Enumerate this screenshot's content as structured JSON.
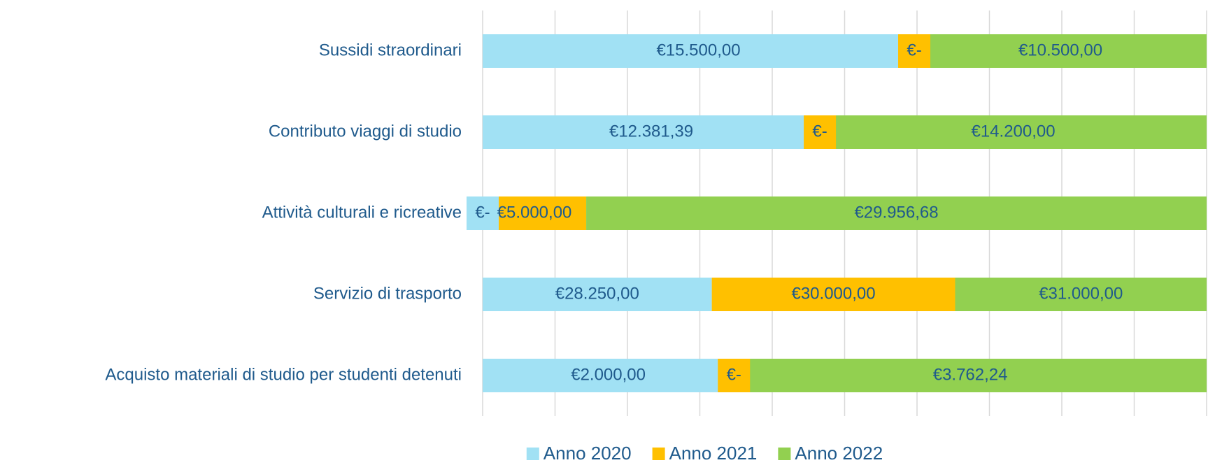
{
  "chart_data": {
    "type": "bar",
    "orientation": "horizontal",
    "stacked": "percent",
    "categories": [
      "Sussidi straordinari",
      "Contributo viaggi di studio",
      "Attività culturali e ricreative",
      "Servizio di trasporto",
      "Acquisto materiali di studio per studenti detenuti"
    ],
    "series": [
      {
        "name": "Anno 2020",
        "color": "#a1e1f4",
        "values": [
          15500,
          12381.39,
          0,
          28250,
          2000
        ],
        "value_labels": [
          "€15.500,00",
          "€12.381,39",
          "€-",
          "€28.250,00",
          "€2.000,00"
        ]
      },
      {
        "name": "Anno 2021",
        "color": "#ffc000",
        "values": [
          0,
          0,
          5000,
          30000,
          0
        ],
        "value_labels": [
          "€-",
          "€-",
          "€5.000,00",
          "€30.000,00",
          "€-"
        ]
      },
      {
        "name": "Anno 2022",
        "color": "#92d050",
        "values": [
          10500,
          14200,
          29956.68,
          31000,
          3762.24
        ],
        "value_labels": [
          "€10.500,00",
          "€14.200,00",
          "€29.956,68",
          "€31.000,00",
          "€3.762,24"
        ]
      }
    ],
    "xlim": [
      0,
      100
    ],
    "xticks": [
      0,
      10,
      20,
      30,
      40,
      50,
      60,
      70,
      80,
      90,
      100
    ],
    "grid": true,
    "legend": "bottom"
  }
}
